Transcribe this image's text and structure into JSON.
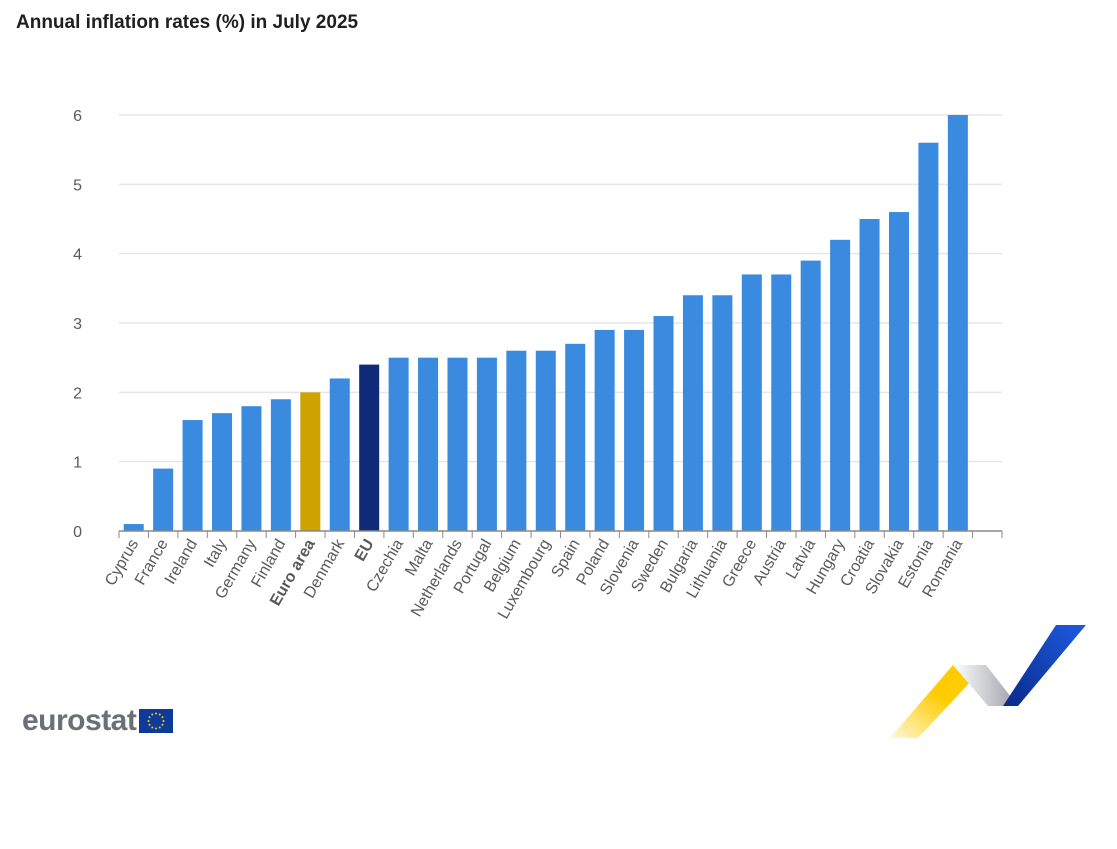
{
  "title": "Annual inflation rates (%) in July 2025",
  "chart_data": {
    "type": "bar",
    "title": "Annual inflation rates (%) in July 2025",
    "xlabel": "",
    "ylabel": "",
    "ylim": [
      0,
      6
    ],
    "yticks": [
      "0",
      "1",
      "2",
      "3",
      "4",
      "5",
      "6"
    ],
    "grid": true,
    "categories": [
      "Cyprus",
      "France",
      "Ireland",
      "Italy",
      "Germany",
      "Finland",
      "Euro area",
      "Denmark",
      "EU",
      "Czechia",
      "Malta",
      "Netherlands",
      "Portugal",
      "Belgium",
      "Luxembourg",
      "Spain",
      "Poland",
      "Slovenia",
      "Sweden",
      "Bulgaria",
      "Lithuania",
      "Greece",
      "Austria",
      "Latvia",
      "Hungary",
      "Croatia",
      "Slovakia",
      "Estonia",
      "Romania"
    ],
    "values": [
      0.1,
      0.9,
      1.6,
      1.7,
      1.8,
      1.9,
      2.0,
      2.2,
      2.4,
      2.5,
      2.5,
      2.5,
      2.5,
      2.6,
      2.6,
      2.7,
      2.9,
      2.9,
      3.1,
      3.4,
      3.4,
      3.7,
      3.7,
      3.9,
      4.2,
      4.5,
      4.6,
      5.6,
      6.0
    ],
    "highlight": {
      "Euro area": "#cca300",
      "EU": "#0e2a78"
    },
    "bar_color": "#3a8be0",
    "bold_categories": [
      "Euro area",
      "EU"
    ]
  },
  "branding": {
    "wordmark": "eurostat"
  },
  "colors": {
    "grid": "#e6e6e6",
    "axis": "#8a8a8a",
    "tick_text": "#5a5a5a",
    "flag": "#0e3a9a",
    "flag_stars": "#ffcc00"
  }
}
